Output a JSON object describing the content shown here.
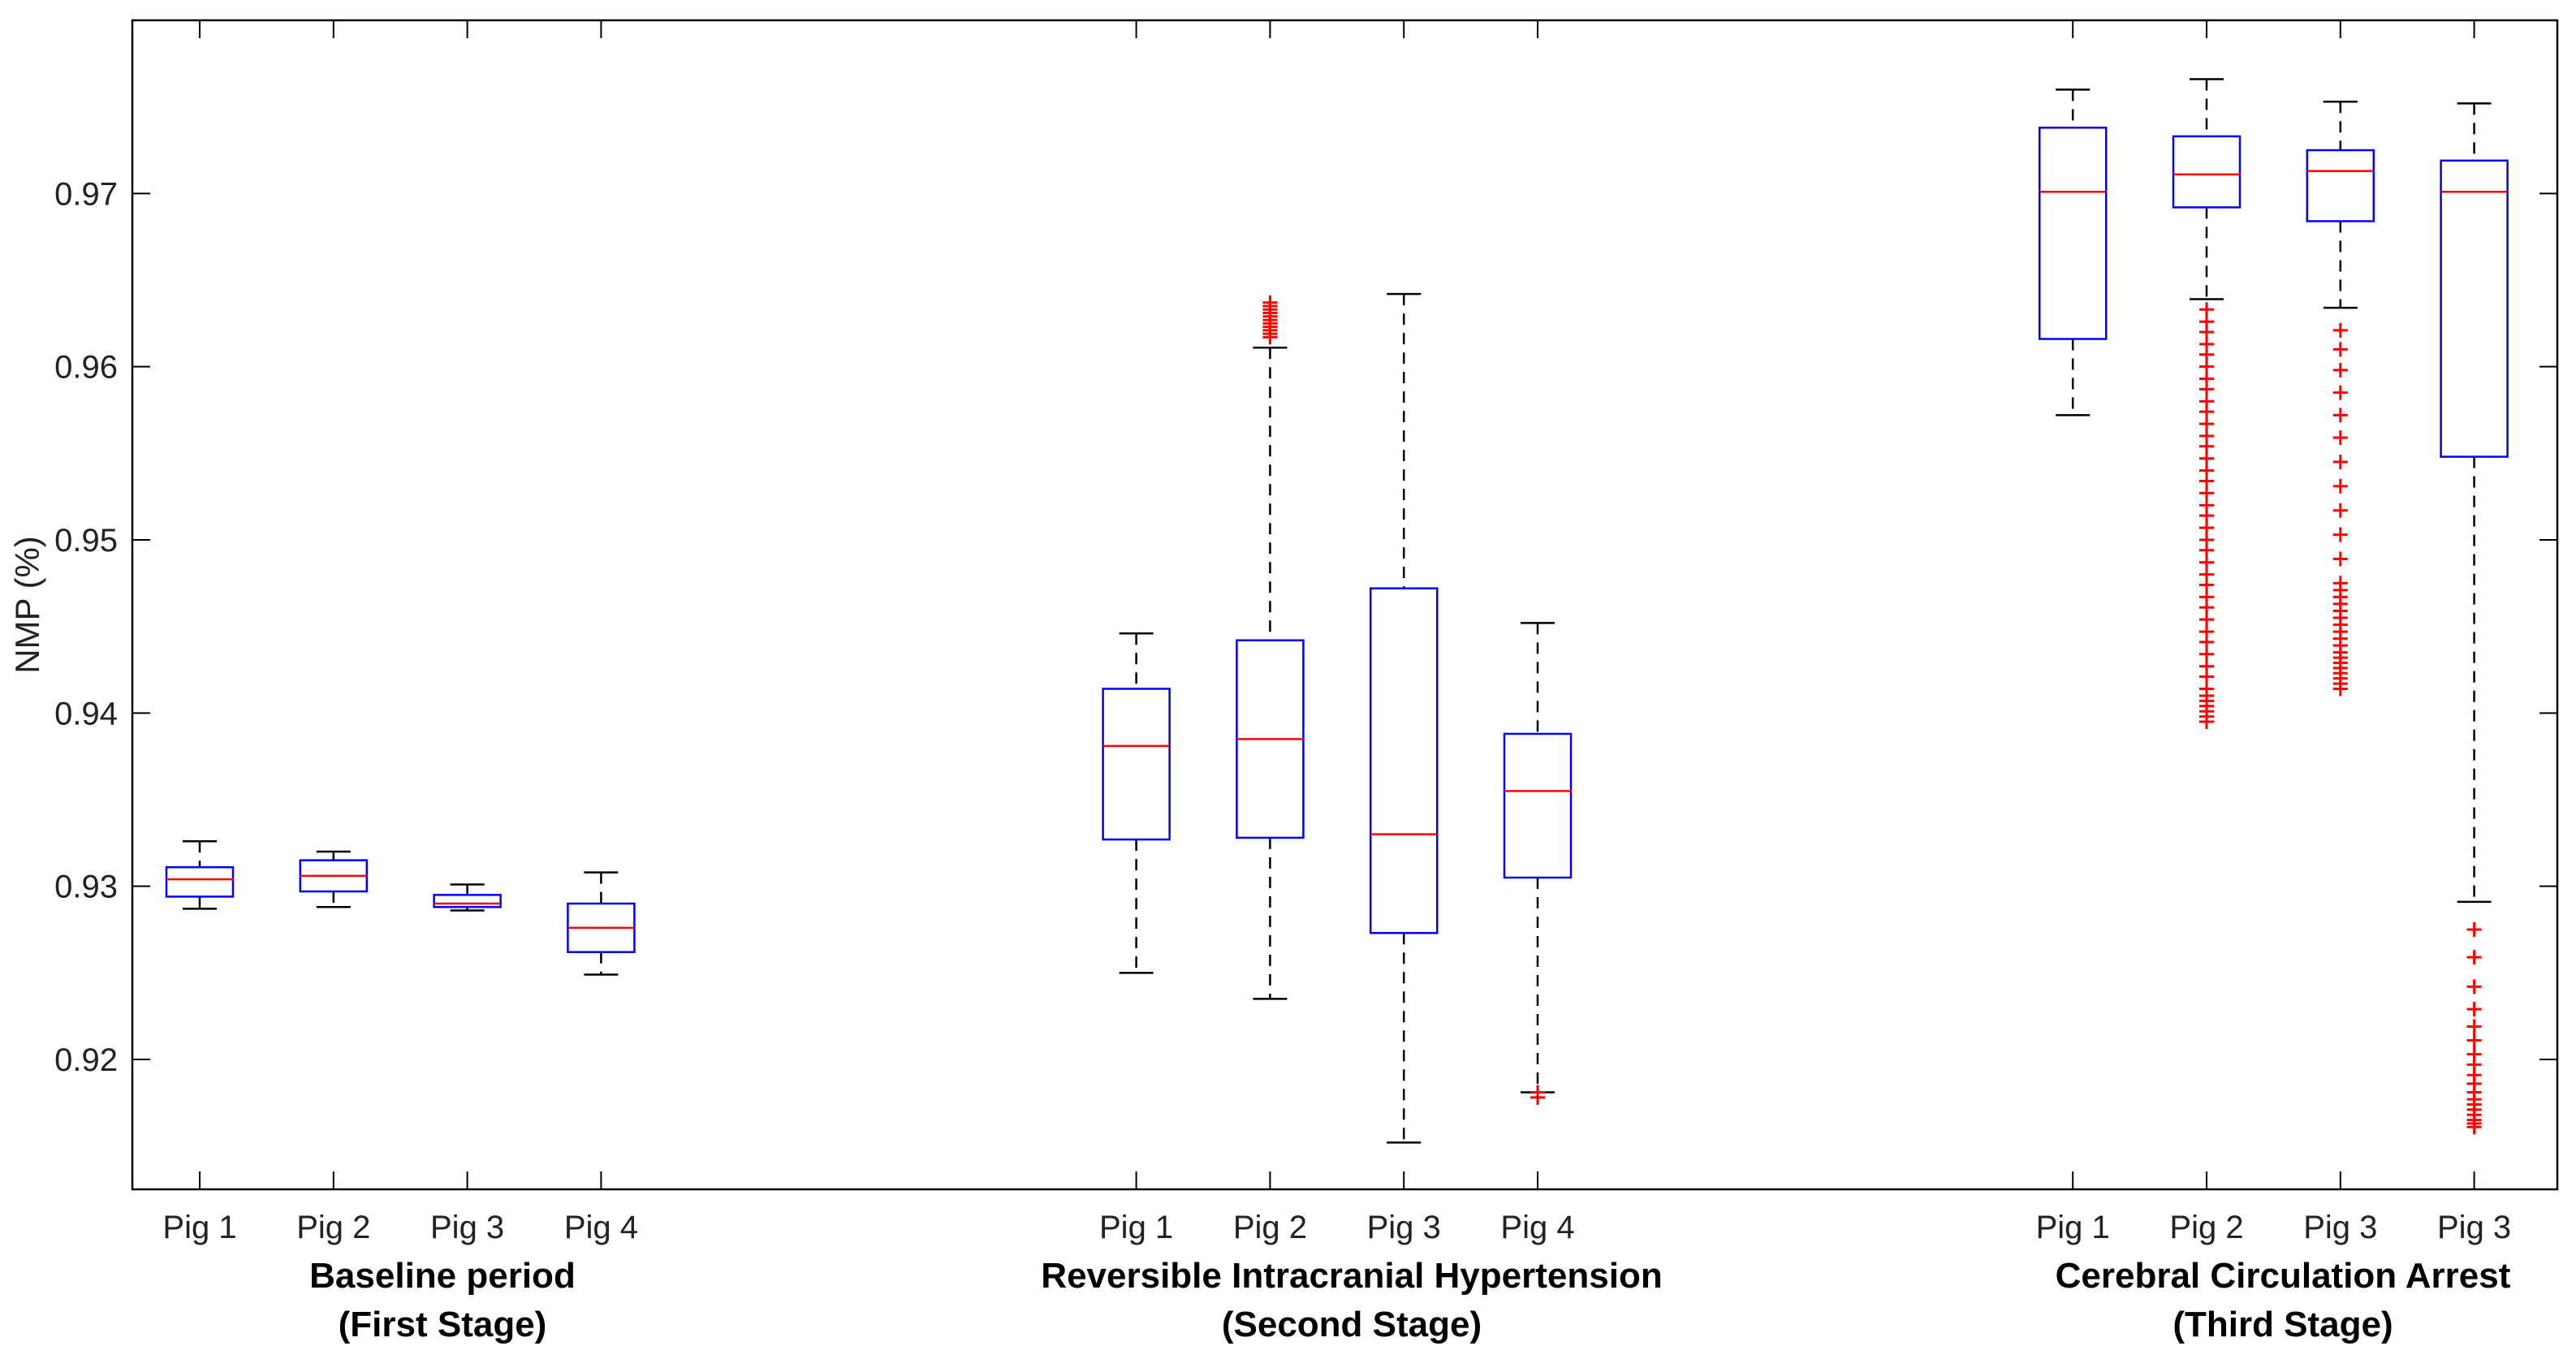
{
  "chart_data": {
    "type": "boxplot",
    "ylabel": "NMP (%)",
    "ylim": [
      0.9125,
      0.98
    ],
    "yticks": [
      0.92,
      0.93,
      0.94,
      0.95,
      0.96,
      0.97
    ],
    "ytick_labels": [
      "0.92",
      "0.93",
      "0.94",
      "0.95",
      "0.96",
      "0.97"
    ],
    "colors": {
      "box": "#0000ff",
      "median": "#ff0000",
      "whisker": "#000000",
      "outlier": "#ff0000",
      "axis": "#000000"
    },
    "groups": [
      {
        "title_line1": "Baseline period",
        "title_line2": "(First Stage)",
        "boxes": [
          {
            "label": "Pig 1",
            "pos": 1,
            "whisker_low": 0.9287,
            "q1": 0.9294,
            "median": 0.9304,
            "q3": 0.9311,
            "whisker_high": 0.9326,
            "outliers": []
          },
          {
            "label": "Pig 2",
            "pos": 2,
            "whisker_low": 0.9288,
            "q1": 0.9297,
            "median": 0.9306,
            "q3": 0.9315,
            "whisker_high": 0.932,
            "outliers": []
          },
          {
            "label": "Pig 3",
            "pos": 3,
            "whisker_low": 0.9286,
            "q1": 0.9288,
            "median": 0.929,
            "q3": 0.9295,
            "whisker_high": 0.9301,
            "outliers": []
          },
          {
            "label": "Pig 4",
            "pos": 4,
            "whisker_low": 0.9249,
            "q1": 0.9262,
            "median": 0.9276,
            "q3": 0.929,
            "whisker_high": 0.9308,
            "outliers": []
          }
        ]
      },
      {
        "title_line1": "Reversible Intracranial Hypertension",
        "title_line2": "(Second Stage)",
        "boxes": [
          {
            "label": "Pig 1",
            "pos": 8,
            "whisker_low": 0.925,
            "q1": 0.9327,
            "median": 0.9381,
            "q3": 0.9414,
            "whisker_high": 0.9446,
            "outliers": []
          },
          {
            "label": "Pig 2",
            "pos": 9,
            "whisker_low": 0.9235,
            "q1": 0.9328,
            "median": 0.9385,
            "q3": 0.9442,
            "whisker_high": 0.9611,
            "outliers": [
              0.9617,
              0.9619,
              0.9621,
              0.9623,
              0.9625,
              0.9627,
              0.9629,
              0.9631,
              0.9633,
              0.9635,
              0.9637
            ]
          },
          {
            "label": "Pig 3",
            "pos": 10,
            "whisker_low": 0.9152,
            "q1": 0.9273,
            "median": 0.933,
            "q3": 0.9472,
            "whisker_high": 0.9642,
            "outliers": []
          },
          {
            "label": "Pig 4",
            "pos": 11,
            "whisker_low": 0.9181,
            "q1": 0.9305,
            "median": 0.9355,
            "q3": 0.9388,
            "whisker_high": 0.9452,
            "outliers": [
              0.9178,
              0.9181
            ]
          }
        ]
      },
      {
        "title_line1": "Cerebral Circulation Arrest",
        "title_line2": "(Third Stage)",
        "boxes": [
          {
            "label": "Pig 1",
            "pos": 15,
            "whisker_low": 0.9572,
            "q1": 0.9616,
            "median": 0.9701,
            "q3": 0.9738,
            "whisker_high": 0.976,
            "outliers": []
          },
          {
            "label": "Pig 2",
            "pos": 16,
            "whisker_low": 0.9639,
            "q1": 0.9692,
            "median": 0.9711,
            "q3": 0.9733,
            "whisker_high": 0.9766,
            "outliers": [
              0.9633,
              0.9626,
              0.962,
              0.9613,
              0.9607,
              0.96,
              0.9593,
              0.9587,
              0.958,
              0.9574,
              0.9567,
              0.956,
              0.9554,
              0.9547,
              0.954,
              0.9534,
              0.9527,
              0.952,
              0.9514,
              0.9507,
              0.95,
              0.9494,
              0.9487,
              0.948,
              0.9474,
              0.9467,
              0.9461,
              0.9454,
              0.9447,
              0.9441,
              0.9434,
              0.9427,
              0.9421,
              0.9414,
              0.941,
              0.9407,
              0.9404,
              0.9401,
              0.9398,
              0.9395
            ]
          },
          {
            "label": "Pig 3",
            "pos": 17,
            "whisker_low": 0.9634,
            "q1": 0.9684,
            "median": 0.9713,
            "q3": 0.9725,
            "whisker_high": 0.9753,
            "outliers": [
              0.9621,
              0.961,
              0.9598,
              0.9585,
              0.9572,
              0.9559,
              0.9545,
              0.9531,
              0.9517,
              0.9503,
              0.9489,
              0.9475,
              0.9471,
              0.9467,
              0.9463,
              0.9459,
              0.9455,
              0.9451,
              0.9447,
              0.9443,
              0.9439,
              0.9435,
              0.9432,
              0.9429,
              0.9426,
              0.9423,
              0.942,
              0.9417,
              0.9414
            ]
          },
          {
            "label": "Pig 3",
            "pos": 18,
            "whisker_low": 0.9291,
            "q1": 0.9548,
            "median": 0.9701,
            "q3": 0.9719,
            "whisker_high": 0.9752,
            "outliers": [
              0.9275,
              0.9259,
              0.9242,
              0.9229,
              0.9219,
              0.9211,
              0.9203,
              0.9197,
              0.9191,
              0.9186,
              0.9181,
              0.9177,
              0.9174,
              0.9171,
              0.9168,
              0.9165,
              0.9163,
              0.9161
            ]
          }
        ]
      }
    ]
  }
}
